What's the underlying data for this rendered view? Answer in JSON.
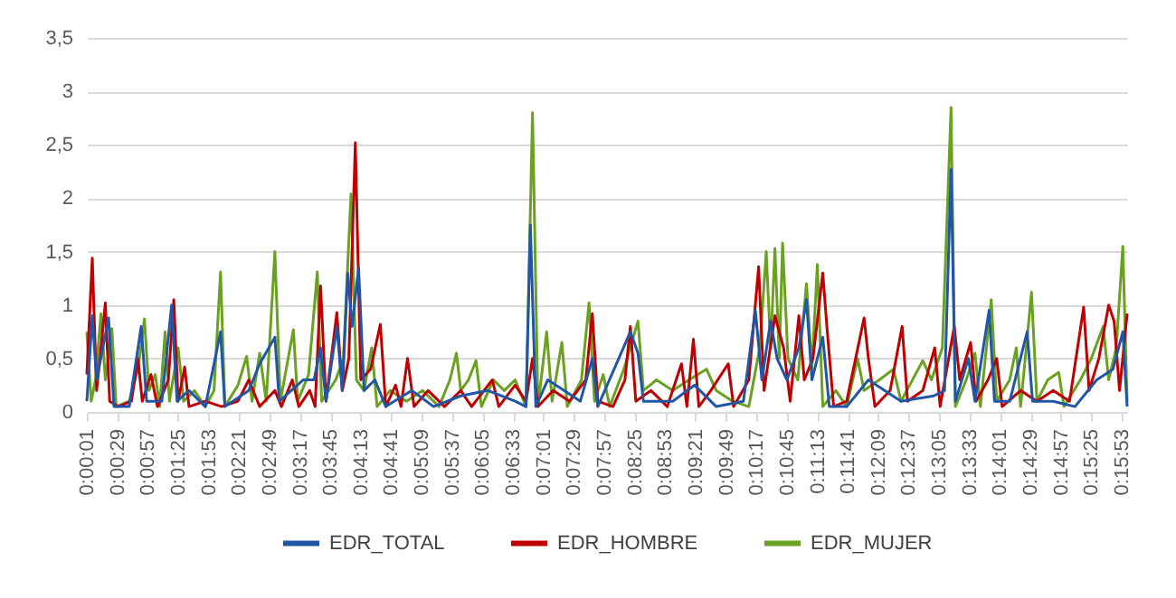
{
  "chart_data": {
    "type": "line",
    "grid": "y",
    "legend": "bottom",
    "xlim": [
      1,
      958
    ],
    "ylim": [
      0,
      3.5
    ],
    "yticks": [
      0,
      {
        "value": 0.5,
        "label": "0,5"
      },
      1,
      {
        "value": 1.5,
        "label": "1,5"
      },
      2,
      {
        "value": 2.5,
        "label": "2,5"
      },
      3,
      {
        "value": 3.5,
        "label": "3,5"
      }
    ],
    "xticks": [
      {
        "value": 1,
        "label": "0:00:01"
      },
      {
        "value": 29,
        "label": "0:00:29"
      },
      {
        "value": 57,
        "label": "0:00:57"
      },
      {
        "value": 85,
        "label": "0:01:25"
      },
      {
        "value": 113,
        "label": "0:01:53"
      },
      {
        "value": 141,
        "label": "0:02:21"
      },
      {
        "value": 169,
        "label": "0:02:49"
      },
      {
        "value": 197,
        "label": "0:03:17"
      },
      {
        "value": 225,
        "label": "0:03:45"
      },
      {
        "value": 253,
        "label": "0:04:13"
      },
      {
        "value": 281,
        "label": "0:04:41"
      },
      {
        "value": 309,
        "label": "0:05:09"
      },
      {
        "value": 337,
        "label": "0:05:37"
      },
      {
        "value": 365,
        "label": "0:06:05"
      },
      {
        "value": 393,
        "label": "0:06:33"
      },
      {
        "value": 421,
        "label": "0:07:01"
      },
      {
        "value": 449,
        "label": "0:07:29"
      },
      {
        "value": 477,
        "label": "0:07:57"
      },
      {
        "value": 505,
        "label": "0:08:25"
      },
      {
        "value": 533,
        "label": "0:08:53"
      },
      {
        "value": 561,
        "label": "0:09:21"
      },
      {
        "value": 589,
        "label": "0:09:49"
      },
      {
        "value": 617,
        "label": "0:10:17"
      },
      {
        "value": 645,
        "label": "0:10:45"
      },
      {
        "value": 673,
        "label": "0:11:13"
      },
      {
        "value": 701,
        "label": "0:11:41"
      },
      {
        "value": 729,
        "label": "0:12:09"
      },
      {
        "value": 757,
        "label": "0:12:37"
      },
      {
        "value": 785,
        "label": "0:13:05"
      },
      {
        "value": 813,
        "label": "0:13:33"
      },
      {
        "value": 841,
        "label": "0:14:01"
      },
      {
        "value": 869,
        "label": "0:14:29"
      },
      {
        "value": 897,
        "label": "0:14:57"
      },
      {
        "value": 925,
        "label": "0:15:25"
      },
      {
        "value": 953,
        "label": "0:15:53"
      }
    ],
    "series": [
      {
        "name": "EDR_MUJER",
        "color": "#6aa121",
        "x": [
          1,
          5,
          9,
          14,
          18,
          24,
          28,
          40,
          48,
          54,
          58,
          64,
          68,
          73,
          77,
          85,
          90,
          100,
          110,
          118,
          124,
          128,
          140,
          148,
          153,
          160,
          166,
          174,
          179,
          191,
          195,
          205,
          213,
          217,
          230,
          237,
          244,
          249,
          256,
          263,
          268,
          280,
          295,
          310,
          325,
          335,
          341,
          345,
          352,
          359,
          364,
          375,
          385,
          395,
          405,
          411,
          416,
          424,
          429,
          438,
          443,
          456,
          463,
          468,
          476,
          482,
          495,
          508,
          513,
          525,
          540,
          555,
          571,
          580,
          595,
          610,
          620,
          626,
          630,
          634,
          638,
          641,
          646,
          655,
          663,
          668,
          673,
          678,
          690,
          700,
          710,
          716,
          730,
          743,
          750,
          770,
          778,
          788,
          796,
          800,
          810,
          818,
          823,
          833,
          838,
          850,
          856,
          860,
          870,
          875,
          885,
          895,
          900,
          915,
          925,
          936,
          941,
          948,
          954,
          958
        ],
        "values": [
          0.75,
          0.1,
          0.3,
          0.92,
          0.3,
          0.78,
          0.05,
          0.1,
          0.4,
          0.87,
          0.2,
          0.35,
          0.05,
          0.75,
          0.1,
          0.6,
          0.1,
          0.2,
          0.05,
          0.2,
          1.31,
          0.05,
          0.25,
          0.52,
          0.1,
          0.55,
          0.1,
          1.5,
          0.1,
          0.77,
          0.1,
          0.35,
          1.31,
          0.1,
          0.3,
          0.5,
          2.04,
          0.3,
          0.2,
          0.6,
          0.05,
          0.2,
          0.1,
          0.2,
          0.05,
          0.3,
          0.55,
          0.2,
          0.3,
          0.48,
          0.05,
          0.3,
          0.2,
          0.3,
          0.05,
          2.8,
          0.05,
          0.75,
          0.1,
          0.65,
          0.05,
          0.3,
          1.02,
          0.1,
          0.35,
          0.05,
          0.4,
          0.85,
          0.2,
          0.3,
          0.2,
          0.3,
          0.4,
          0.2,
          0.1,
          0.05,
          0.6,
          1.5,
          0.6,
          1.53,
          0.5,
          1.58,
          0.5,
          0.3,
          1.2,
          0.4,
          1.38,
          0.05,
          0.2,
          0.05,
          0.5,
          0.2,
          0.3,
          0.4,
          0.1,
          0.48,
          0.3,
          0.6,
          2.85,
          0.05,
          0.3,
          0.55,
          0.05,
          1.05,
          0.1,
          0.3,
          0.6,
          0.05,
          1.12,
          0.1,
          0.3,
          0.37,
          0.05,
          0.3,
          0.5,
          0.8,
          0.3,
          0.6,
          1.55,
          0.1
        ]
      },
      {
        "name": "EDR_HOMBRE",
        "color": "#c00000",
        "x": [
          1,
          6,
          10,
          14,
          18,
          22,
          30,
          42,
          48,
          52,
          60,
          66,
          76,
          81,
          85,
          91,
          95,
          110,
          125,
          140,
          150,
          160,
          174,
          180,
          190,
          196,
          206,
          211,
          216,
          221,
          231,
          236,
          242,
          248,
          253,
          262,
          271,
          276,
          285,
          290,
          296,
          302,
          315,
          330,
          345,
          355,
          374,
          380,
          395,
          405,
          411,
          416,
          430,
          445,
          460,
          466,
          471,
          485,
          496,
          501,
          506,
          520,
          535,
          548,
          553,
          559,
          564,
          575,
          591,
          596,
          610,
          619,
          624,
          634,
          642,
          648,
          656,
          661,
          669,
          678,
          682,
          688,
          700,
          716,
          720,
          726,
          740,
          751,
          756,
          770,
          781,
          786,
          799,
          804,
          814,
          819,
          830,
          838,
          843,
          860,
          875,
          890,
          905,
          918,
          923,
          932,
          941,
          946,
          951,
          958
        ],
        "values": [
          0.35,
          1.44,
          0.2,
          0.6,
          1.02,
          0.1,
          0.05,
          0.1,
          0.5,
          0.1,
          0.35,
          0.05,
          0.3,
          1.05,
          0.1,
          0.42,
          0.05,
          0.1,
          0.05,
          0.1,
          0.3,
          0.05,
          0.2,
          0.05,
          0.3,
          0.05,
          0.2,
          0.05,
          1.18,
          0.1,
          0.93,
          0.2,
          0.5,
          2.52,
          0.3,
          0.4,
          0.82,
          0.05,
          0.25,
          0.05,
          0.5,
          0.05,
          0.2,
          0.05,
          0.2,
          0.05,
          0.3,
          0.05,
          0.25,
          0.1,
          0.5,
          0.05,
          0.2,
          0.1,
          0.3,
          0.92,
          0.1,
          0.05,
          0.3,
          0.8,
          0.1,
          0.2,
          0.05,
          0.45,
          0.05,
          0.68,
          0.05,
          0.2,
          0.45,
          0.05,
          0.3,
          1.36,
          0.2,
          0.9,
          0.6,
          0.1,
          0.9,
          0.3,
          0.5,
          1.3,
          0.77,
          0.05,
          0.1,
          0.88,
          0.5,
          0.05,
          0.2,
          0.8,
          0.1,
          0.2,
          0.6,
          0.05,
          0.8,
          0.3,
          0.65,
          0.1,
          0.3,
          0.5,
          0.05,
          0.2,
          0.1,
          0.2,
          0.1,
          0.98,
          0.2,
          0.5,
          1.0,
          0.85,
          0.2,
          0.92
        ]
      },
      {
        "name": "EDR_TOTAL",
        "color": "#2155a6",
        "x": [
          1,
          6,
          10,
          21,
          26,
          40,
          51,
          56,
          70,
          79,
          84,
          95,
          110,
          124,
          128,
          150,
          160,
          174,
          178,
          200,
          210,
          216,
          221,
          231,
          236,
          241,
          245,
          251,
          256,
          266,
          276,
          300,
          320,
          345,
          370,
          395,
          405,
          409,
          414,
          425,
          440,
          455,
          466,
          471,
          501,
          508,
          513,
          540,
          560,
          580,
          605,
          616,
          622,
          630,
          636,
          645,
          656,
          663,
          668,
          678,
          684,
          700,
          720,
          750,
          780,
          790,
          796,
          800,
          812,
          818,
          831,
          836,
          850,
          866,
          871,
          890,
          910,
          930,
          945,
          954,
          958
        ],
        "values": [
          0.1,
          0.9,
          0.3,
          0.88,
          0.05,
          0.05,
          0.8,
          0.1,
          0.1,
          1.0,
          0.1,
          0.2,
          0.05,
          0.75,
          0.05,
          0.2,
          0.45,
          0.7,
          0.1,
          0.3,
          0.3,
          0.6,
          0.1,
          0.8,
          0.2,
          1.3,
          0.8,
          1.35,
          0.2,
          0.3,
          0.05,
          0.2,
          0.05,
          0.15,
          0.2,
          0.1,
          0.05,
          1.75,
          0.05,
          0.3,
          0.2,
          0.1,
          0.5,
          0.05,
          0.75,
          0.55,
          0.1,
          0.1,
          0.25,
          0.05,
          0.1,
          0.95,
          0.3,
          0.85,
          0.5,
          0.3,
          0.6,
          1.05,
          0.3,
          0.7,
          0.05,
          0.05,
          0.3,
          0.1,
          0.15,
          0.2,
          2.27,
          0.1,
          0.5,
          0.1,
          0.95,
          0.1,
          0.1,
          0.75,
          0.1,
          0.1,
          0.05,
          0.3,
          0.4,
          0.75,
          0.05
        ]
      }
    ]
  }
}
